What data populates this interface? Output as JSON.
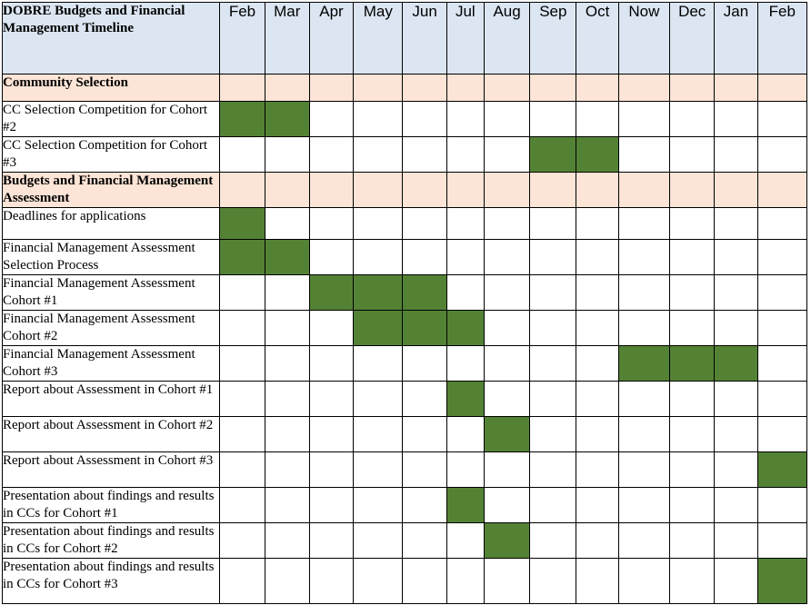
{
  "title": "DOBRE Budgets and Financial Management Timeline",
  "months": [
    "Feb",
    "Mar",
    "Apr",
    "May",
    "Jun",
    "Jul",
    "Aug",
    "Sep",
    "Oct",
    "Now",
    "Dec",
    "Jan",
    "Feb"
  ],
  "colors": {
    "header_bg": "#dce6f2",
    "section_bg": "#fce4d6",
    "active_cell": "#548235",
    "border": "#000000"
  },
  "rows": [
    {
      "type": "section",
      "label": "Community Selection"
    },
    {
      "type": "task",
      "label": "CC Selection Competition for Cohort #2",
      "active": [
        0,
        1
      ]
    },
    {
      "type": "task",
      "label": "CC Selection Competition for Cohort #3",
      "active": [
        7,
        8
      ]
    },
    {
      "type": "section",
      "label": "Budgets and Financial Management Assessment"
    },
    {
      "type": "task",
      "label": "Deadlines for applications",
      "active": [
        0
      ]
    },
    {
      "type": "task",
      "label": "Financial Management Assessment Selection Process",
      "active": [
        0,
        1
      ]
    },
    {
      "type": "task",
      "label": "Financial Management Assessment Cohort #1",
      "active": [
        2,
        3,
        4
      ]
    },
    {
      "type": "task",
      "label": "Financial Management Assessment Cohort #2",
      "active": [
        3,
        4,
        5
      ]
    },
    {
      "type": "task",
      "label": "Financial Management Assessment Cohort #3",
      "active": [
        9,
        10,
        11
      ]
    },
    {
      "type": "task",
      "label": "Report about Assessment in Cohort #1",
      "active": [
        5
      ]
    },
    {
      "type": "task",
      "label": "Report about Assessment in Cohort #2",
      "active": [
        6
      ]
    },
    {
      "type": "task",
      "label": "Report about Assessment in Cohort #3",
      "active": [
        12
      ]
    },
    {
      "type": "task",
      "label": "Presentation about findings and results in CCs for Cohort #1",
      "active": [
        5
      ]
    },
    {
      "type": "task",
      "label": "Presentation about findings and results in CCs for Cohort #2",
      "active": [
        6
      ]
    },
    {
      "type": "task",
      "label": "Presentation about findings and results in CCs for Cohort #3",
      "active": [
        12
      ]
    }
  ]
}
